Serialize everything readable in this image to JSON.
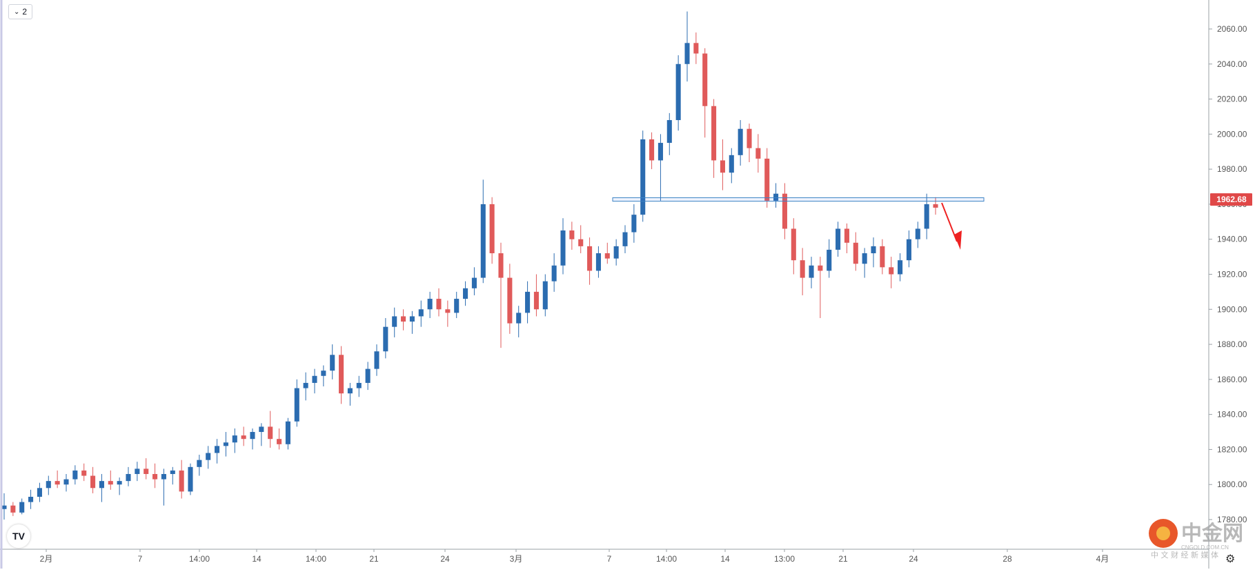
{
  "toolbar": {
    "interval_label": "2"
  },
  "logo": {
    "tv_text": "TV"
  },
  "watermark": {
    "brand": "中金网",
    "domain": "CNGOLD.COM.CN",
    "slogan": "中 文 财 经 新 媒 体"
  },
  "colors": {
    "up": "#2962ff",
    "up_body": "#2b6cb0",
    "down": "#e05a5a",
    "level_line": "#3b82c4",
    "price_tag": "#e04848",
    "arrow": "#ee2222",
    "axis_text": "#555555",
    "grid_border": "#bbbbbb"
  },
  "chart_data": {
    "type": "candlestick",
    "price_axis": {
      "min": 1775,
      "max": 2070,
      "ticks": [
        1780,
        1800,
        1820,
        1840,
        1860,
        1880,
        1900,
        1920,
        1940,
        1960,
        1980,
        2000,
        2020,
        2040,
        2060
      ],
      "tick_labels": [
        "1780.00",
        "1800.00",
        "1820.00",
        "1840.00",
        "1860.00",
        "1880.00",
        "1900.00",
        "1920.00",
        "1940.00",
        "1960.00",
        "1980.00",
        "2000.00",
        "2020.00",
        "2040.00",
        "2060.00"
      ]
    },
    "time_axis_labels": [
      "2月",
      "7",
      "14:00",
      "14",
      "14:00",
      "21",
      "24",
      "3月",
      "7",
      "14:00",
      "14",
      "13:00",
      "21",
      "24",
      "28",
      "4月"
    ],
    "current_price": "1962.68",
    "resistance_level": 1962.5,
    "projection": "down",
    "candles": [
      [
        1786,
        1795,
        1780,
        1788
      ],
      [
        1788,
        1790,
        1782,
        1784
      ],
      [
        1784,
        1792,
        1783,
        1790
      ],
      [
        1790,
        1797,
        1786,
        1793
      ],
      [
        1793,
        1801,
        1790,
        1798
      ],
      [
        1798,
        1805,
        1794,
        1802
      ],
      [
        1802,
        1808,
        1798,
        1800
      ],
      [
        1800,
        1806,
        1796,
        1803
      ],
      [
        1803,
        1811,
        1800,
        1808
      ],
      [
        1808,
        1812,
        1802,
        1805
      ],
      [
        1805,
        1810,
        1795,
        1798
      ],
      [
        1798,
        1806,
        1790,
        1802
      ],
      [
        1802,
        1808,
        1797,
        1800
      ],
      [
        1800,
        1804,
        1794,
        1802
      ],
      [
        1802,
        1810,
        1799,
        1806
      ],
      [
        1806,
        1813,
        1802,
        1809
      ],
      [
        1809,
        1815,
        1803,
        1806
      ],
      [
        1806,
        1812,
        1798,
        1803
      ],
      [
        1803,
        1809,
        1788,
        1806
      ],
      [
        1806,
        1810,
        1800,
        1808
      ],
      [
        1808,
        1814,
        1792,
        1796
      ],
      [
        1796,
        1812,
        1794,
        1810
      ],
      [
        1810,
        1817,
        1805,
        1814
      ],
      [
        1814,
        1822,
        1809,
        1818
      ],
      [
        1818,
        1826,
        1812,
        1822
      ],
      [
        1822,
        1830,
        1816,
        1824
      ],
      [
        1824,
        1832,
        1818,
        1828
      ],
      [
        1828,
        1833,
        1822,
        1826
      ],
      [
        1826,
        1832,
        1820,
        1830
      ],
      [
        1830,
        1835,
        1822,
        1833
      ],
      [
        1833,
        1842,
        1821,
        1826
      ],
      [
        1826,
        1832,
        1820,
        1823
      ],
      [
        1823,
        1838,
        1820,
        1836
      ],
      [
        1836,
        1860,
        1833,
        1855
      ],
      [
        1855,
        1864,
        1848,
        1858
      ],
      [
        1858,
        1866,
        1852,
        1862
      ],
      [
        1862,
        1868,
        1856,
        1865
      ],
      [
        1865,
        1880,
        1860,
        1874
      ],
      [
        1874,
        1879,
        1846,
        1852
      ],
      [
        1852,
        1858,
        1845,
        1855
      ],
      [
        1855,
        1862,
        1850,
        1858
      ],
      [
        1858,
        1870,
        1854,
        1866
      ],
      [
        1866,
        1880,
        1862,
        1876
      ],
      [
        1876,
        1895,
        1872,
        1890
      ],
      [
        1890,
        1901,
        1884,
        1896
      ],
      [
        1896,
        1900,
        1888,
        1893
      ],
      [
        1893,
        1899,
        1886,
        1896
      ],
      [
        1896,
        1905,
        1890,
        1900
      ],
      [
        1900,
        1910,
        1895,
        1906
      ],
      [
        1906,
        1912,
        1896,
        1900
      ],
      [
        1900,
        1905,
        1890,
        1898
      ],
      [
        1898,
        1910,
        1895,
        1906
      ],
      [
        1906,
        1916,
        1902,
        1912
      ],
      [
        1912,
        1924,
        1908,
        1918
      ],
      [
        1918,
        1974,
        1915,
        1960
      ],
      [
        1960,
        1964,
        1926,
        1932
      ],
      [
        1932,
        1938,
        1878,
        1918
      ],
      [
        1918,
        1926,
        1886,
        1892
      ],
      [
        1892,
        1902,
        1884,
        1898
      ],
      [
        1898,
        1916,
        1892,
        1910
      ],
      [
        1910,
        1920,
        1896,
        1900
      ],
      [
        1900,
        1920,
        1896,
        1916
      ],
      [
        1916,
        1932,
        1910,
        1925
      ],
      [
        1925,
        1952,
        1920,
        1945
      ],
      [
        1945,
        1950,
        1934,
        1940
      ],
      [
        1940,
        1948,
        1932,
        1936
      ],
      [
        1936,
        1941,
        1914,
        1922
      ],
      [
        1922,
        1936,
        1918,
        1932
      ],
      [
        1932,
        1938,
        1926,
        1929
      ],
      [
        1929,
        1940,
        1925,
        1936
      ],
      [
        1936,
        1948,
        1932,
        1944
      ],
      [
        1944,
        1960,
        1938,
        1954
      ],
      [
        1954,
        2002,
        1950,
        1997
      ],
      [
        1997,
        2001,
        1980,
        1985
      ],
      [
        1985,
        2000,
        1962,
        1995
      ],
      [
        1995,
        2012,
        1988,
        2008
      ],
      [
        2008,
        2045,
        2002,
        2040
      ],
      [
        2040,
        2070,
        2030,
        2052
      ],
      [
        2052,
        2058,
        2040,
        2046
      ],
      [
        2046,
        2049,
        1998,
        2016
      ],
      [
        2016,
        2020,
        1975,
        1985
      ],
      [
        1985,
        1997,
        1968,
        1978
      ],
      [
        1978,
        1992,
        1972,
        1988
      ],
      [
        1988,
        2008,
        1982,
        2003
      ],
      [
        2003,
        2006,
        1984,
        1992
      ],
      [
        1992,
        2000,
        1978,
        1986
      ],
      [
        1986,
        1992,
        1958,
        1962
      ],
      [
        1962,
        1972,
        1958,
        1966
      ],
      [
        1966,
        1972,
        1940,
        1946
      ],
      [
        1946,
        1952,
        1920,
        1928
      ],
      [
        1928,
        1935,
        1908,
        1918
      ],
      [
        1918,
        1930,
        1912,
        1925
      ],
      [
        1925,
        1930,
        1895,
        1922
      ],
      [
        1922,
        1940,
        1918,
        1934
      ],
      [
        1934,
        1950,
        1930,
        1946
      ],
      [
        1946,
        1949,
        1932,
        1938
      ],
      [
        1938,
        1944,
        1922,
        1926
      ],
      [
        1926,
        1935,
        1918,
        1932
      ],
      [
        1932,
        1941,
        1924,
        1936
      ],
      [
        1936,
        1940,
        1920,
        1924
      ],
      [
        1924,
        1930,
        1912,
        1920
      ],
      [
        1920,
        1932,
        1916,
        1928
      ],
      [
        1928,
        1945,
        1924,
        1940
      ],
      [
        1940,
        1950,
        1935,
        1946
      ],
      [
        1946,
        1966,
        1940,
        1960
      ],
      [
        1960,
        1964,
        1954,
        1958
      ]
    ]
  }
}
